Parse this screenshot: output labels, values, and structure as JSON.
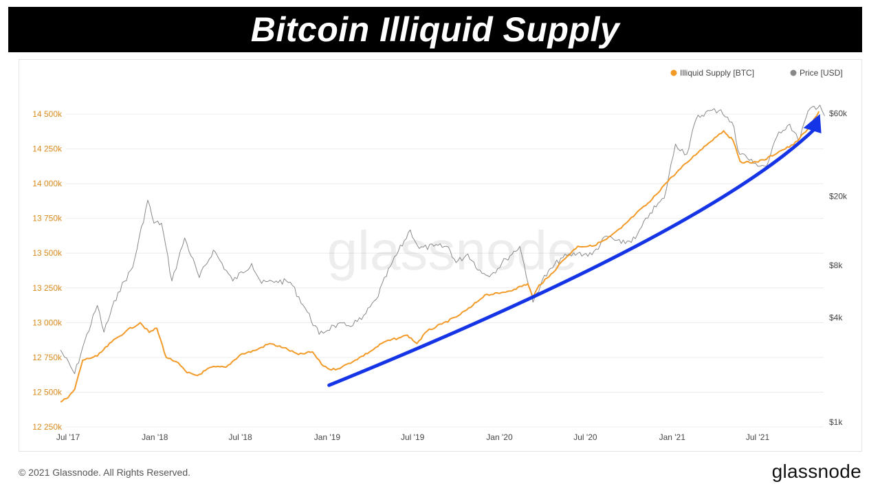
{
  "header": {
    "title": "Bitcoin Illiquid Supply"
  },
  "footer": {
    "copyright": "© 2021 Glassnode. All Rights Reserved.",
    "brand": "glassnode"
  },
  "watermark": "glassnode",
  "colors": {
    "illiquid": "#f29a27",
    "price": "#888888",
    "arrow": "#1434e6",
    "leftAxis": "#d88a1e"
  },
  "chart_data": {
    "type": "line",
    "title": "Bitcoin Illiquid Supply",
    "legend": [
      "Illiquid Supply [BTC]",
      "Price [USD]"
    ],
    "legend_position": "top-right",
    "grid": true,
    "x_ticks": [
      "Jul '17",
      "Jan '18",
      "Jul '18",
      "Jan '19",
      "Jul '19",
      "Jan '20",
      "Jul '20",
      "Jan '21",
      "Jul '21"
    ],
    "left_axis": {
      "ticks": [
        "12 250k",
        "12 500k",
        "12 750k",
        "13 000k",
        "13 250k",
        "13 500k",
        "13 750k",
        "14 000k",
        "14 250k",
        "14 500k"
      ],
      "range": [
        12250,
        14500
      ]
    },
    "right_axis": {
      "scale": "log",
      "ticks": [
        "$1k",
        "$4k",
        "$8k",
        "$20k",
        "$60k"
      ]
    },
    "series": [
      {
        "name": "Illiquid Supply [BTC]",
        "unit": "thousand BTC",
        "points": [
          [
            "2017-06-15",
            12430
          ],
          [
            "2017-07-01",
            12460
          ],
          [
            "2017-07-15",
            12520
          ],
          [
            "2017-08-01",
            12730
          ],
          [
            "2017-09-01",
            12760
          ],
          [
            "2017-10-01",
            12860
          ],
          [
            "2017-11-01",
            12940
          ],
          [
            "2017-12-01",
            13000
          ],
          [
            "2017-12-20",
            12930
          ],
          [
            "2018-01-05",
            12960
          ],
          [
            "2018-01-25",
            12750
          ],
          [
            "2018-02-15",
            12720
          ],
          [
            "2018-03-10",
            12640
          ],
          [
            "2018-04-01",
            12620
          ],
          [
            "2018-05-01",
            12680
          ],
          [
            "2018-06-01",
            12680
          ],
          [
            "2018-07-01",
            12770
          ],
          [
            "2018-08-01",
            12800
          ],
          [
            "2018-09-01",
            12850
          ],
          [
            "2018-10-01",
            12820
          ],
          [
            "2018-11-01",
            12770
          ],
          [
            "2018-12-01",
            12790
          ],
          [
            "2018-12-20",
            12700
          ],
          [
            "2019-01-10",
            12660
          ],
          [
            "2019-02-01",
            12680
          ],
          [
            "2019-03-01",
            12730
          ],
          [
            "2019-04-01",
            12790
          ],
          [
            "2019-05-01",
            12860
          ],
          [
            "2019-06-01",
            12890
          ],
          [
            "2019-06-20",
            12910
          ],
          [
            "2019-07-10",
            12850
          ],
          [
            "2019-08-01",
            12940
          ],
          [
            "2019-09-01",
            12990
          ],
          [
            "2019-10-01",
            13040
          ],
          [
            "2019-11-01",
            13110
          ],
          [
            "2019-12-01",
            13200
          ],
          [
            "2020-01-01",
            13210
          ],
          [
            "2020-02-01",
            13240
          ],
          [
            "2020-03-01",
            13280
          ],
          [
            "2020-03-12",
            13180
          ],
          [
            "2020-03-25",
            13270
          ],
          [
            "2020-04-15",
            13330
          ],
          [
            "2020-05-15",
            13450
          ],
          [
            "2020-06-15",
            13550
          ],
          [
            "2020-07-15",
            13550
          ],
          [
            "2020-08-15",
            13600
          ],
          [
            "2020-09-15",
            13680
          ],
          [
            "2020-10-15",
            13780
          ],
          [
            "2020-11-15",
            13870
          ],
          [
            "2020-12-15",
            13990
          ],
          [
            "2021-01-01",
            14050
          ],
          [
            "2021-02-01",
            14150
          ],
          [
            "2021-03-01",
            14240
          ],
          [
            "2021-04-01",
            14330
          ],
          [
            "2021-04-20",
            14380
          ],
          [
            "2021-05-10",
            14310
          ],
          [
            "2021-05-25",
            14160
          ],
          [
            "2021-06-15",
            14150
          ],
          [
            "2021-07-15",
            14170
          ],
          [
            "2021-08-15",
            14230
          ],
          [
            "2021-09-15",
            14280
          ],
          [
            "2021-10-15",
            14390
          ],
          [
            "2021-11-08",
            14520
          ]
        ]
      },
      {
        "name": "Price [USD]",
        "unit": "USD",
        "points": [
          [
            "2017-06-15",
            2600
          ],
          [
            "2017-07-15",
            1900
          ],
          [
            "2017-08-01",
            2700
          ],
          [
            "2017-09-01",
            4700
          ],
          [
            "2017-09-15",
            3300
          ],
          [
            "2017-10-15",
            5600
          ],
          [
            "2017-11-15",
            7800
          ],
          [
            "2017-12-17",
            19000
          ],
          [
            "2017-12-30",
            14000
          ],
          [
            "2018-01-15",
            14000
          ],
          [
            "2018-02-06",
            6500
          ],
          [
            "2018-03-05",
            11500
          ],
          [
            "2018-04-05",
            6800
          ],
          [
            "2018-05-05",
            9800
          ],
          [
            "2018-06-15",
            6500
          ],
          [
            "2018-07-25",
            8200
          ],
          [
            "2018-08-15",
            6300
          ],
          [
            "2018-09-15",
            6500
          ],
          [
            "2018-10-15",
            6400
          ],
          [
            "2018-11-20",
            4300
          ],
          [
            "2018-12-15",
            3200
          ],
          [
            "2019-01-15",
            3600
          ],
          [
            "2019-02-15",
            3600
          ],
          [
            "2019-03-15",
            3900
          ],
          [
            "2019-04-15",
            5100
          ],
          [
            "2019-05-15",
            7900
          ],
          [
            "2019-06-26",
            12800
          ],
          [
            "2019-07-15",
            10000
          ],
          [
            "2019-08-15",
            10300
          ],
          [
            "2019-09-15",
            10200
          ],
          [
            "2019-10-01",
            8300
          ],
          [
            "2019-10-26",
            9300
          ],
          [
            "2019-11-25",
            7200
          ],
          [
            "2019-12-15",
            7100
          ],
          [
            "2020-01-15",
            8700
          ],
          [
            "2020-02-13",
            10300
          ],
          [
            "2020-03-12",
            4900
          ],
          [
            "2020-04-01",
            6600
          ],
          [
            "2020-05-10",
            8800
          ],
          [
            "2020-06-15",
            9400
          ],
          [
            "2020-07-15",
            9200
          ],
          [
            "2020-08-15",
            11800
          ],
          [
            "2020-09-15",
            10700
          ],
          [
            "2020-10-15",
            11400
          ],
          [
            "2020-11-15",
            16000
          ],
          [
            "2020-12-15",
            19500
          ],
          [
            "2021-01-08",
            40000
          ],
          [
            "2021-02-01",
            35000
          ],
          [
            "2021-02-21",
            56000
          ],
          [
            "2021-03-13",
            61000
          ],
          [
            "2021-04-14",
            63000
          ],
          [
            "2021-05-12",
            50000
          ],
          [
            "2021-05-20",
            37000
          ],
          [
            "2021-06-22",
            31000
          ],
          [
            "2021-07-20",
            29800
          ],
          [
            "2021-08-15",
            47000
          ],
          [
            "2021-09-07",
            52000
          ],
          [
            "2021-09-25",
            42000
          ],
          [
            "2021-10-20",
            64000
          ],
          [
            "2021-11-10",
            67000
          ],
          [
            "2021-11-20",
            58000
          ]
        ]
      }
    ],
    "annotations": [
      {
        "type": "arrow",
        "from": [
          "2019-01-05",
          12550
        ],
        "to": [
          "2021-11-10",
          14500
        ]
      }
    ]
  }
}
